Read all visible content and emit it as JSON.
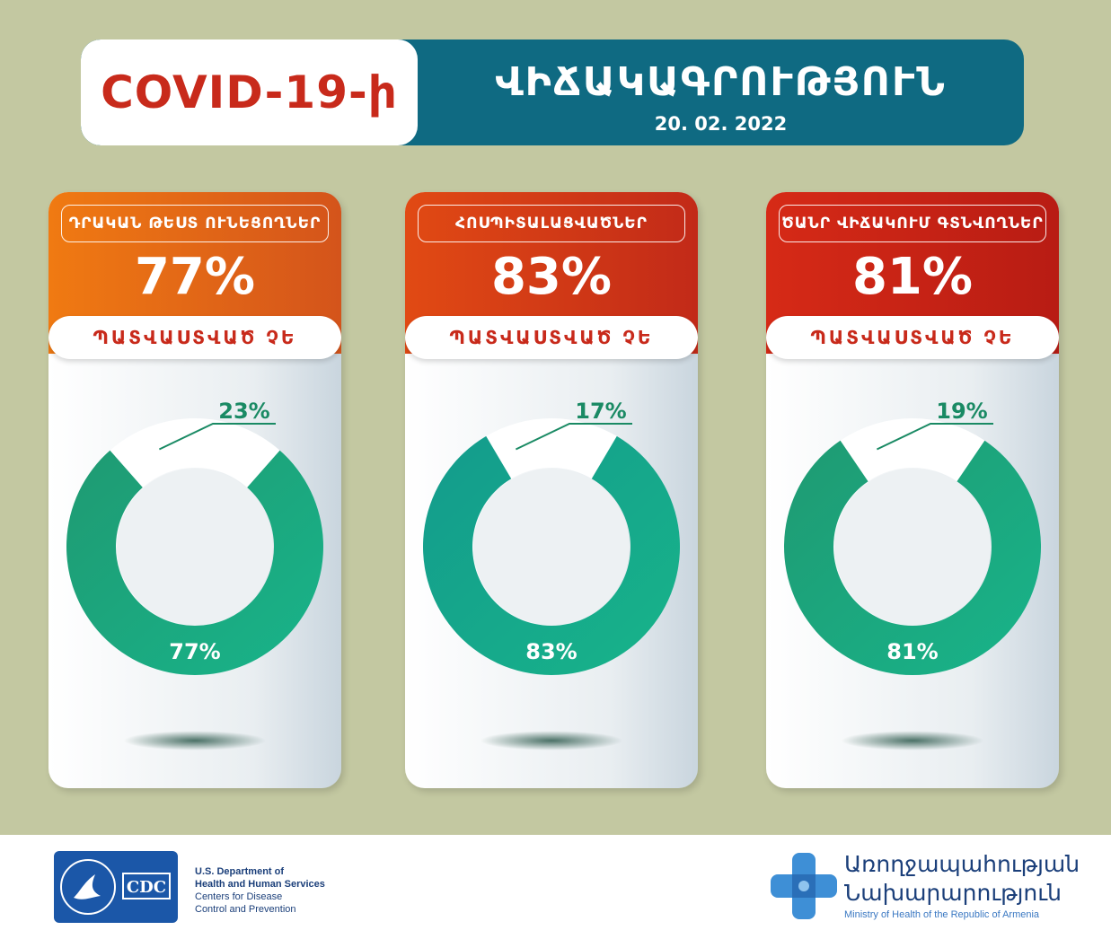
{
  "header": {
    "covid_label": "COVID-19-ի",
    "title": "ՎԻՃԱԿԱԳՐՈՒԹՅՈՒՆ",
    "date": "20. 02. 2022"
  },
  "colors": {
    "background": "#c3c8a1",
    "header_teal": "#0f6a82",
    "title_red": "#c82a1b",
    "donut_green": "#1f9a72",
    "donut_teal": "#139b8c",
    "label_green": "#1a8a64"
  },
  "cards": [
    {
      "label": "ԴՐԱԿԱՆ ԹԵՍՏ ՈՒՆԵՑՈՂՆԵՐ",
      "big_pct": "77%",
      "pill": "ՊԱՏՎԱՍՏՎԱԾ ՉԵ",
      "small_label": "23%",
      "main_label": "77%",
      "top_gradient": [
        "#f07a12",
        "#d4541b"
      ]
    },
    {
      "label": "ՀՈՍՊԻՏԱԼԱՑՎԱԾՆԵՐ",
      "big_pct": "83%",
      "pill": "ՊԱՏՎԱՍՏՎԱԾ ՉԵ",
      "small_label": "17%",
      "main_label": "83%",
      "top_gradient": [
        "#e14a14",
        "#c22a18"
      ]
    },
    {
      "label": "ԾԱՆՐ ՎԻՃԱԿՈՒՄ ԳՏՆՎՈՂՆԵՐ",
      "big_pct": "81%",
      "pill": "ՊԱՏՎԱՍՏՎԱԾ ՉԵ",
      "small_label": "19%",
      "main_label": "81%",
      "top_gradient": [
        "#d62a16",
        "#b81c14"
      ]
    }
  ],
  "chart_data": [
    {
      "type": "pie",
      "title": "ԴՐԱԿԱՆ ԹԵՍՏ ՈՒՆԵՑՈՂՆԵՐ",
      "categories": [
        "ՊԱՏՎԱՍՏՎԱԾ ՉԵ",
        ""
      ],
      "values": [
        77,
        23
      ]
    },
    {
      "type": "pie",
      "title": "ՀՈՍՊԻՏԱԼԱՑՎԱԾՆԵՐ",
      "categories": [
        "ՊԱՏՎԱՍՏՎԱԾ ՉԵ",
        ""
      ],
      "values": [
        83,
        17
      ]
    },
    {
      "type": "pie",
      "title": "ԾԱՆՐ ՎԻՃԱԿՈՒՄ ԳՏՆՎՈՂՆԵՐ",
      "categories": [
        "ՊԱՏՎԱՍՏՎԱԾ ՉԵ",
        ""
      ],
      "values": [
        81,
        19
      ]
    }
  ],
  "footer": {
    "hhs_line1": "U.S. Department of",
    "hhs_line2": "Health and Human Services",
    "hhs_line3": "Centers for Disease",
    "hhs_line4": "Control and Prevention",
    "cdc_text": "CDC",
    "moh_line1": "Առողջապահության",
    "moh_line2": "Նախարարություն",
    "moh_line3": "Ministry of Health of the Republic of Armenia"
  }
}
